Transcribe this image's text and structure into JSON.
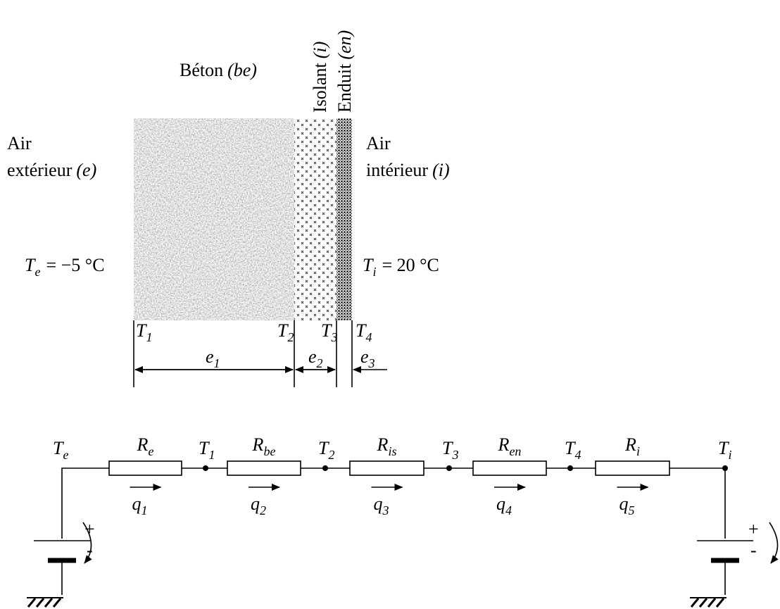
{
  "wall": {
    "layers": [
      {
        "name": "Béton",
        "symbol": "(be)"
      },
      {
        "name": "Isolant",
        "symbol": "(i)"
      },
      {
        "name": "Enduit",
        "symbol": "(en)"
      }
    ],
    "sides": [
      {
        "line1": "Air",
        "line2": "extérieur",
        "symbol": "(e)",
        "temperature": {
          "symbol": "T",
          "sub": "e",
          "value": "= −5 °C"
        }
      },
      {
        "line1": "Air",
        "line2": "intérieur",
        "symbol": "(i)",
        "temperature": {
          "symbol": "T",
          "sub": "i",
          "value": "= 20 °C"
        }
      }
    ],
    "interfaces": [
      {
        "symbol": "T",
        "sub": "1"
      },
      {
        "symbol": "T",
        "sub": "2"
      },
      {
        "symbol": "T",
        "sub": "3"
      },
      {
        "symbol": "T",
        "sub": "4"
      }
    ],
    "thicknesses": [
      {
        "symbol": "e",
        "sub": "1"
      },
      {
        "symbol": "e",
        "sub": "2"
      },
      {
        "symbol": "e",
        "sub": "3"
      }
    ]
  },
  "circuit": {
    "nodes": [
      {
        "symbol": "T",
        "sub": "e"
      },
      {
        "symbol": "T",
        "sub": "1"
      },
      {
        "symbol": "T",
        "sub": "2"
      },
      {
        "symbol": "T",
        "sub": "3"
      },
      {
        "symbol": "T",
        "sub": "4"
      },
      {
        "symbol": "T",
        "sub": "i"
      }
    ],
    "resistors": [
      {
        "symbol": "R",
        "sub": "e"
      },
      {
        "symbol": "R",
        "sub": "be"
      },
      {
        "symbol": "R",
        "sub": "is"
      },
      {
        "symbol": "R",
        "sub": "en"
      },
      {
        "symbol": "R",
        "sub": "i"
      }
    ],
    "flows": [
      {
        "symbol": "q",
        "sub": "1"
      },
      {
        "symbol": "q",
        "sub": "2"
      },
      {
        "symbol": "q",
        "sub": "3"
      },
      {
        "symbol": "q",
        "sub": "4"
      },
      {
        "symbol": "q",
        "sub": "5"
      }
    ],
    "sources": [
      {
        "plus": "+",
        "minus": "-"
      },
      {
        "plus": "+",
        "minus": "-"
      }
    ]
  }
}
